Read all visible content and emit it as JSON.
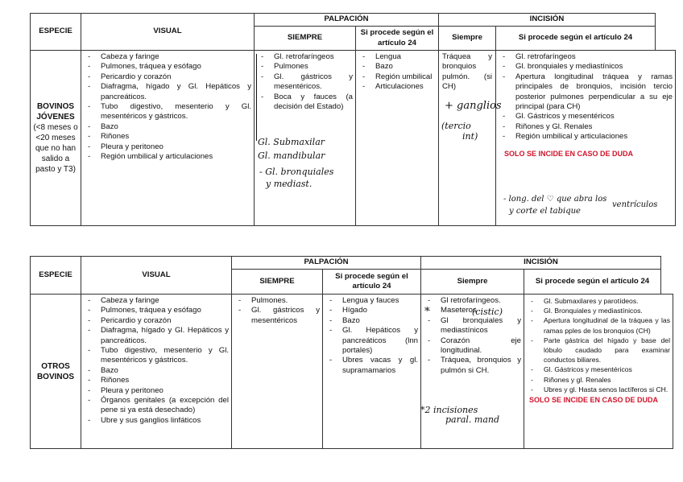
{
  "table1": {
    "headers": {
      "especie": "ESPECIE",
      "visual": "VISUAL",
      "palpacion": "PALPACIÓN",
      "incision": "INCISIÓN",
      "palp_siempre": "SIEMPRE",
      "palp_si_procede": "Si procede según el artículo 24",
      "inc_siempre": "Siempre",
      "inc_si_procede": "Si procede según el artículo 24"
    },
    "especie": {
      "title": "BOVINOS JÓVENES",
      "detail": "(<8 meses o <20 meses que no han salido a pasto y T3)"
    },
    "visual": [
      "Cabeza y faringe",
      "Pulmones, tráquea y esófago",
      "Pericardio y corazón",
      "Diafragma, hígado y Gl. Hepáticos y pancreáticos.",
      "Tubo digestivo, mesenterio y Gl. mesentéricos y gástricos.",
      "Bazo",
      "Riñones",
      "Pleura y peritoneo",
      "Región umbilical y articulaciones"
    ],
    "palp_siempre": [
      "Gl. retrofaríngeos",
      "Pulmones",
      "Gl. gástricos y mesentéricos.",
      "Boca y fauces (a decisión del Estado)"
    ],
    "palp_si_procede": [
      "Lengua",
      "Bazo",
      "Región umbilical",
      "Articulaciones"
    ],
    "inc_siempre": "Tráquea y bronquios pulmón. (si CH)",
    "inc_si_procede": [
      "Gl. retrofaríngeos",
      "Gl. bronquiales y mediastínicos",
      "Apertura longitudinal tráquea y ramas principales de bronquios, incisión tercio posterior pulmones perpendicular a su eje principal (para CH)",
      "Gl. Gástricos y mesentéricos",
      "Riñones y Gl. Renales",
      "Región umbilical y articulaciones"
    ],
    "note": "SOLO SE INCIDE EN CASO DE DUDA",
    "handwritten": {
      "palp1": "Gl. Submaxilar",
      "palp2": "Gl. mandibular",
      "palp3": "- Gl. bronquiales",
      "palp4": "y mediast.",
      "inc1": "+ ganglios",
      "inc2": "(tercio",
      "inc3": "int)",
      "dud1": "- long. del ♡ que abra los",
      "dud2": "ventrículos",
      "dud3": "y corte el tabique"
    }
  },
  "table2": {
    "headers": {
      "especie": "ESPECIE",
      "visual": "VISUAL",
      "palpacion": "PALPACIÓN",
      "incision": "INCISIÓN",
      "palp_siempre": "SIEMPRE",
      "palp_si_procede": "Si procede según el artículo 24",
      "inc_siempre": "Siempre",
      "inc_si_procede": "Si procede según el artículo 24"
    },
    "especie": {
      "title": "OTROS BOVINOS"
    },
    "visual": [
      "Cabeza y faringe",
      "Pulmones, tráquea y esófago",
      "Pericardio y corazón",
      "Diafragma, hígado y Gl. Hepáticos y pancreáticos.",
      "Tubo digestivo, mesenterio y Gl. mesentéricos y gástricos.",
      "Bazo",
      "Riñones",
      "Pleura y peritoneo",
      "Órganos genitales (a excepción del pene si ya está desechado)",
      "Ubre y sus ganglios linfáticos"
    ],
    "palp_siempre": [
      "Pulmones.",
      "Gl. gástricos y mesentéricos"
    ],
    "palp_si_procede": [
      "Lengua y fauces",
      "Hígado",
      "Bazo",
      "Gl. Hepáticos y pancreáticos (lnn portales)",
      "Ubres vacas y gl. supramamarios"
    ],
    "inc_siempre": [
      "Gl retrofaríngeos.",
      "Maseteros",
      "Gl bronquiales y mediastínicos",
      "Corazón eje longitudinal.",
      "Tráquea, bronquios y pulmón si CH."
    ],
    "inc_si_procede": [
      "Gl. Submaxilares y parotídeos.",
      "Gl. Bronquiales y mediastínicos.",
      "Apertura longitudinal de la tráquea y las ramas pples de los bronquios (CH)",
      "Parte gástrica del hígado y base del lóbulo caudado para examinar conductos biliares.",
      "Gl. Gástricos y mesentéricos",
      "Riñones y gl. Renales",
      "Ubres y gl. Hasta senos lactíferos si CH."
    ],
    "note": "SOLO SE INCIDE EN CASO DE DUDA",
    "handwritten": {
      "mas": "(cistic)",
      "star": "*",
      "inc1": "*2 incisiones",
      "inc2": "paral. mand"
    }
  },
  "colors": {
    "note_red": "#d0142c"
  }
}
